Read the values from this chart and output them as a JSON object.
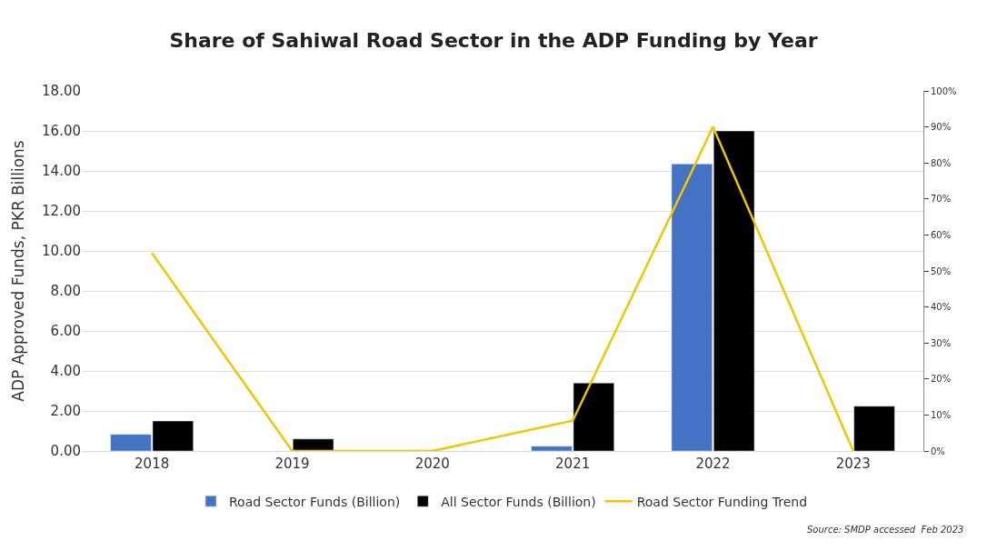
{
  "chart_data": {
    "type": "bar",
    "title": "Share of Sahiwal Road Sector in the ADP Funding by Year",
    "ylabel": "ADP Approved Funds, PKR Billions",
    "categories": [
      "2018",
      "2019",
      "2020",
      "2021",
      "2022",
      "2023"
    ],
    "series": [
      {
        "name": "Road Sector Funds (Billion)",
        "color": "#4472c4",
        "values": [
          0.83,
          null,
          null,
          0.24,
          14.35,
          null
        ]
      },
      {
        "name": "All Sector Funds (Billion)",
        "color": "#000000",
        "values": [
          1.5,
          0.6,
          null,
          3.4,
          16.0,
          2.24
        ]
      },
      {
        "name": "Road Sector Funding Trend",
        "color": "#f2c500",
        "type": "line",
        "axis": "y2",
        "values": [
          55,
          0,
          0,
          8.4,
          90,
          0
        ]
      }
    ],
    "ylim": [
      0,
      18
    ],
    "yticks": [
      {
        "value": 0,
        "label": "0.00"
      },
      {
        "value": 2,
        "label": "2.00"
      },
      {
        "value": 4,
        "label": "4.00"
      },
      {
        "value": 6,
        "label": "6.00"
      },
      {
        "value": 8,
        "label": "8.00"
      },
      {
        "value": 10,
        "label": "10.00"
      },
      {
        "value": 12,
        "label": "12.00"
      },
      {
        "value": 14,
        "label": "14.00"
      },
      {
        "value": 16,
        "label": "16.00"
      },
      {
        "value": 18,
        "label": "18.00"
      }
    ],
    "y2lim": [
      0,
      100
    ],
    "y2ticks": [
      {
        "value": 0,
        "label": "0%"
      },
      {
        "value": 10,
        "label": "10%"
      },
      {
        "value": 20,
        "label": "20%"
      },
      {
        "value": 30,
        "label": "30%"
      },
      {
        "value": 40,
        "label": "40%"
      },
      {
        "value": 50,
        "label": "50%"
      },
      {
        "value": 60,
        "label": "60%"
      },
      {
        "value": 70,
        "label": "70%"
      },
      {
        "value": 80,
        "label": "80%"
      },
      {
        "value": 90,
        "label": "90%"
      },
      {
        "value": 100,
        "label": "100%"
      }
    ],
    "grid": "y",
    "legend": "bottom",
    "marker": "none",
    "annotations": [
      "Source: SMDP accessed  Feb 2023"
    ]
  }
}
